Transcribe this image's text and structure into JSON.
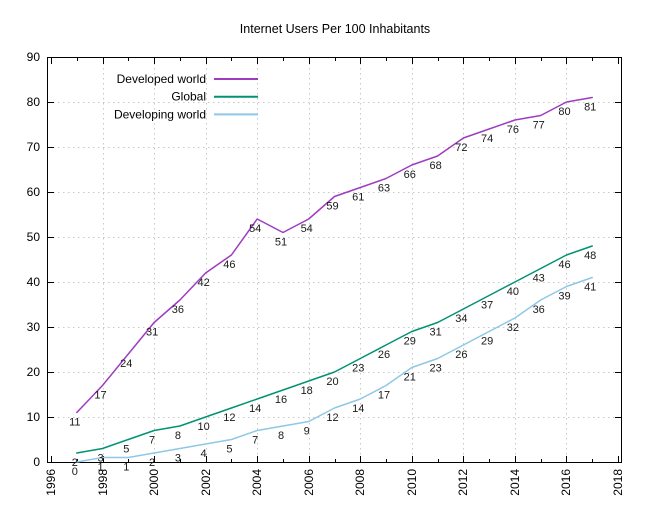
{
  "title": "Internet Users Per 100 Inhabitants",
  "chart_data": {
    "type": "line",
    "title": "Internet Users Per 100 Inhabitants",
    "xlabel": "",
    "ylabel": "",
    "xlim": [
      1996,
      2018
    ],
    "ylim": [
      0,
      90
    ],
    "x_ticks_major": [
      1996,
      1998,
      2000,
      2002,
      2004,
      2006,
      2008,
      2010,
      2012,
      2014,
      2016,
      2018
    ],
    "x_ticks_minor_step": 1,
    "y_ticks": [
      0,
      10,
      20,
      30,
      40,
      50,
      60,
      70,
      80,
      90
    ],
    "grid": true,
    "legend_position": "top-left-inside",
    "point_labels": true,
    "x": [
      1997,
      1998,
      1999,
      2000,
      2001,
      2002,
      2003,
      2004,
      2005,
      2006,
      2007,
      2008,
      2009,
      2010,
      2011,
      2012,
      2013,
      2014,
      2015,
      2016,
      2017
    ],
    "series": [
      {
        "name": "Developed world",
        "color": "#9e3cc1",
        "values": [
          11,
          17,
          24,
          31,
          36,
          42,
          46,
          54,
          51,
          54,
          59,
          61,
          63,
          66,
          68,
          72,
          74,
          76,
          77,
          80,
          81
        ]
      },
      {
        "name": "Global",
        "color": "#009273",
        "values": [
          2,
          3,
          5,
          7,
          8,
          10,
          12,
          14,
          16,
          18,
          20,
          23,
          26,
          29,
          31,
          34,
          37,
          40,
          43,
          46,
          48
        ]
      },
      {
        "name": "Developing world",
        "color": "#8ec8e6",
        "values": [
          0,
          1,
          1,
          2,
          3,
          4,
          5,
          7,
          8,
          9,
          12,
          14,
          17,
          21,
          23,
          26,
          29,
          32,
          36,
          39,
          41
        ]
      }
    ]
  },
  "style_colors": {
    "grid": "#c8c8c8",
    "border": "#000000",
    "tick_text": "#000000",
    "point_label_text": "#1a1a1a"
  }
}
